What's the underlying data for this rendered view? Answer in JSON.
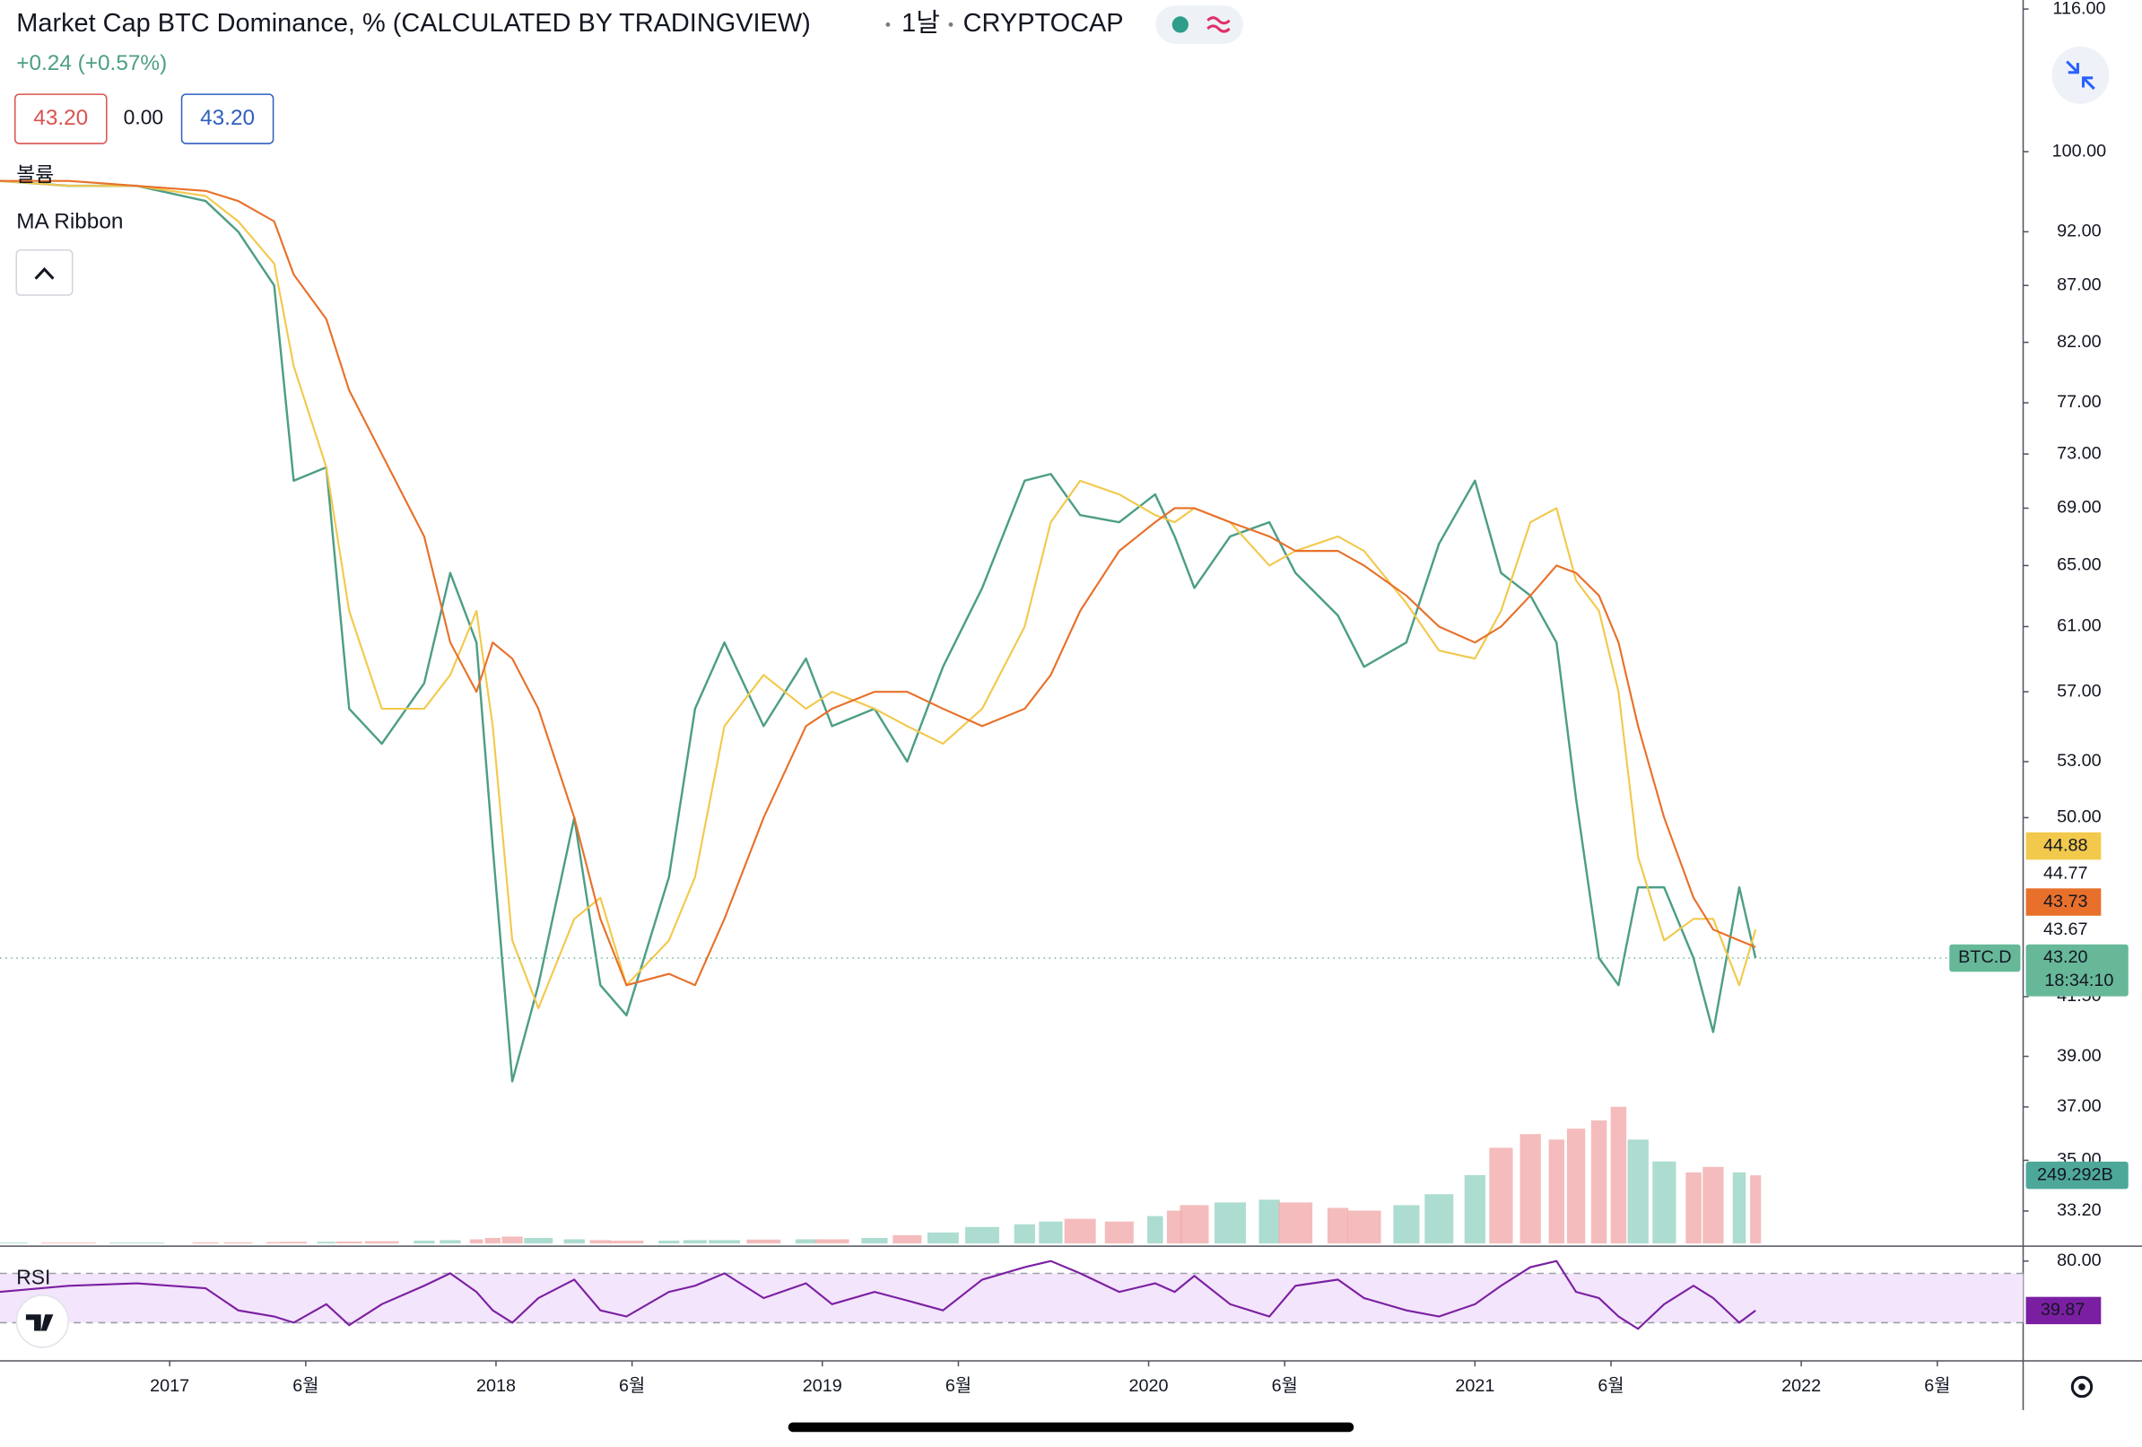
{
  "chart_data": {
    "type": "line",
    "title": "Market Cap BTC Dominance, % (CALCULATED BY TRADINGVIEW)",
    "interval": "1날",
    "exchange": "CRYPTOCAP",
    "change": "+0.24 (+0.57%)",
    "quote_boxes": [
      {
        "value": 43.2,
        "label": "43.20"
      },
      {
        "value": 0,
        "label": "0.00"
      },
      {
        "value": 43.2,
        "label": "43.20"
      }
    ],
    "volume_label": "볼륨",
    "ribbon_label": "MA Ribbon",
    "log_scale": true,
    "grid": false,
    "xlim": [
      2016.48,
      2022.68
    ],
    "xticks": [
      2017,
      {
        "value": 2017.417,
        "label": "6월"
      },
      2018,
      {
        "value": 2018.417,
        "label": "6월"
      },
      2019,
      {
        "value": 2019.417,
        "label": "6월"
      },
      2020,
      {
        "value": 2020.417,
        "label": "6월"
      },
      2021,
      {
        "value": 2021.417,
        "label": "6월"
      },
      2022,
      {
        "value": 2022.417,
        "label": "6월"
      }
    ],
    "ylim": [
      32.1,
      117.1
    ],
    "yticks": [
      {
        "value": 116,
        "label": "116.00"
      },
      {
        "value": 100,
        "label": "100.00"
      },
      {
        "value": 92,
        "label": "92.00"
      },
      {
        "value": 87,
        "label": "87.00"
      },
      {
        "value": 82,
        "label": "82.00"
      },
      {
        "value": 77,
        "label": "77.00"
      },
      {
        "value": 73,
        "label": "73.00"
      },
      {
        "value": 69,
        "label": "69.00"
      },
      {
        "value": 65,
        "label": "65.00"
      },
      {
        "value": 61,
        "label": "61.00"
      },
      {
        "value": 57,
        "label": "57.00"
      },
      {
        "value": 53,
        "label": "53.00"
      },
      {
        "value": 50,
        "label": "50.00"
      },
      {
        "value": 41.5,
        "label": "41.50"
      },
      {
        "value": 39,
        "label": "39.00"
      },
      {
        "value": 37,
        "label": "37.00"
      },
      {
        "value": 35,
        "label": "35.00"
      },
      {
        "value": 33.2,
        "label": "33.20"
      }
    ],
    "x": [
      2016.48,
      2016.69,
      2016.9,
      2017.11,
      2017.21,
      2017.32,
      2017.38,
      2017.48,
      2017.55,
      2017.65,
      2017.78,
      2017.86,
      2017.94,
      2017.99,
      2018.05,
      2018.13,
      2018.24,
      2018.32,
      2018.4,
      2018.53,
      2018.61,
      2018.7,
      2018.82,
      2018.95,
      2019.03,
      2019.16,
      2019.26,
      2019.37,
      2019.49,
      2019.62,
      2019.7,
      2019.79,
      2019.91,
      2020.02,
      2020.08,
      2020.14,
      2020.25,
      2020.37,
      2020.45,
      2020.58,
      2020.66,
      2020.79,
      2020.89,
      2021.0,
      2021.08,
      2021.17,
      2021.25,
      2021.31,
      2021.38,
      2021.44,
      2021.5,
      2021.58,
      2021.67,
      2021.73,
      2021.81,
      2021.86
    ],
    "series": [
      {
        "name": "BTC.D",
        "color": "#4d9e86",
        "values": [
          97,
          96.5,
          96.5,
          95,
          92,
          87,
          71,
          72,
          56,
          54,
          57.5,
          64.5,
          60,
          48.5,
          38,
          42,
          50,
          42,
          40.7,
          47,
          56,
          60,
          55,
          59,
          55,
          56,
          53,
          58.5,
          63.5,
          71,
          71.5,
          68.5,
          68,
          70,
          67,
          63.5,
          67,
          68,
          64.5,
          61.7,
          58.5,
          60,
          66.5,
          71,
          64.5,
          63,
          60,
          51,
          43.2,
          42,
          46.5,
          46.5,
          43.2,
          40,
          46.5,
          43.2
        ]
      },
      {
        "color": "#f2c94c",
        "values": [
          97,
          96.5,
          96.5,
          95.5,
          93,
          89,
          80,
          72,
          62,
          56,
          56,
          58,
          62,
          55,
          44,
          41,
          45,
          46,
          42,
          44,
          47,
          55,
          58,
          56,
          57,
          56,
          55,
          54,
          56,
          61,
          68,
          71,
          70,
          68.5,
          68,
          69,
          68,
          65,
          66,
          67,
          66,
          62.5,
          59.5,
          59,
          62,
          68,
          69,
          64,
          62,
          57,
          48,
          44,
          45,
          45,
          42,
          44.5
        ]
      },
      {
        "color": "#e8702a",
        "values": [
          97,
          97,
          96.5,
          96,
          95,
          93,
          88,
          84,
          78,
          73,
          67,
          60,
          57,
          60,
          59,
          56,
          50,
          45,
          42,
          42.5,
          42,
          45,
          50,
          55,
          56,
          57,
          57,
          56,
          55,
          56,
          58,
          62,
          66,
          68,
          69,
          69,
          68,
          67,
          66,
          66,
          65,
          63,
          61,
          60,
          61,
          63,
          65,
          64.5,
          63,
          60,
          55,
          50,
          46,
          44.5,
          44,
          43.7
        ]
      }
    ],
    "price_labels": [
      {
        "value": 44.88,
        "label": "44.88",
        "color": "#f2c94c"
      },
      {
        "value": 44.77,
        "label": "44.77"
      },
      {
        "value": 43.73,
        "label": "43.73",
        "color": "#e8702a"
      },
      {
        "value": 43.67,
        "label": "43.67"
      }
    ],
    "last_price": {
      "value": 43.2,
      "label": "43.20",
      "name": "BTC.D",
      "countdown": "18:34:10",
      "color": "#66b898"
    },
    "volume": {
      "ylim": [
        0,
        1250
      ],
      "colors": [
        "#9fd6c8",
        "#f2b0b0"
      ],
      "values": [
        3,
        3,
        3,
        4,
        4,
        5,
        6,
        6,
        7,
        8,
        10,
        12,
        15,
        20,
        25,
        20,
        15,
        12,
        10,
        10,
        12,
        12,
        14,
        15,
        15,
        20,
        30,
        40,
        60,
        70,
        80,
        90,
        80,
        100,
        120,
        140,
        150,
        160,
        150,
        130,
        120,
        140,
        180,
        250,
        350,
        400,
        380,
        420,
        450,
        500,
        380,
        300,
        260,
        280,
        260,
        249.292
      ],
      "last": {
        "value": 249.292,
        "label": "249.292B",
        "color": "#4ea89a"
      }
    },
    "rsi": {
      "label": "RSI",
      "color": "#7b1fa2",
      "ylim": [
        -1,
        91
      ],
      "yticks": [
        {
          "value": 80,
          "label": "80.00"
        }
      ],
      "band": [
        30,
        70
      ],
      "values": [
        55,
        60,
        62,
        58,
        40,
        35,
        30,
        45,
        28,
        45,
        60,
        70,
        55,
        40,
        30,
        50,
        65,
        40,
        35,
        55,
        60,
        70,
        50,
        62,
        45,
        55,
        48,
        40,
        65,
        75,
        80,
        70,
        55,
        62,
        55,
        68,
        45,
        35,
        60,
        65,
        50,
        40,
        35,
        45,
        60,
        75,
        80,
        55,
        50,
        35,
        25,
        45,
        60,
        50,
        30,
        39.87
      ],
      "last": {
        "value": 39.87,
        "label": "39.87"
      }
    }
  }
}
